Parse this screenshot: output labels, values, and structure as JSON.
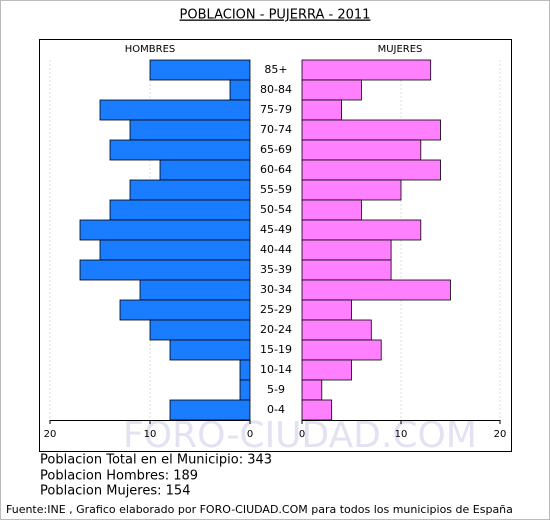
{
  "chart_data": {
    "type": "pyramid",
    "title": "POBLACION - PUJERRA - 2011",
    "categories": [
      "85+",
      "80-84",
      "75-79",
      "70-74",
      "65-69",
      "60-64",
      "55-59",
      "50-54",
      "45-49",
      "40-44",
      "35-39",
      "30-34",
      "25-29",
      "20-24",
      "15-19",
      "10-14",
      "5-9",
      "0-4"
    ],
    "series": [
      {
        "name": "HOMBRES",
        "color": "#1a7cff",
        "values": [
          10,
          2,
          15,
          12,
          14,
          9,
          12,
          14,
          17,
          15,
          17,
          11,
          13,
          10,
          8,
          1,
          1,
          8
        ]
      },
      {
        "name": "MUJERES",
        "color": "#ff80ff",
        "values": [
          13,
          6,
          4,
          14,
          12,
          14,
          10,
          6,
          12,
          9,
          9,
          15,
          5,
          7,
          8,
          5,
          2,
          3
        ]
      }
    ],
    "xlim": [
      0,
      20
    ],
    "xticks": [
      0,
      10,
      20
    ],
    "grid": true,
    "watermark": "FORO-CIUDAD.COM",
    "annotations": [
      "Poblacion Total en el Municipio: 343",
      "Poblacion Hombres: 189",
      "Poblacion Mujeres: 154"
    ],
    "source": "Fuente:INE , Grafico elaborado por FORO-CIUDAD.COM para todos los municipios de España"
  }
}
